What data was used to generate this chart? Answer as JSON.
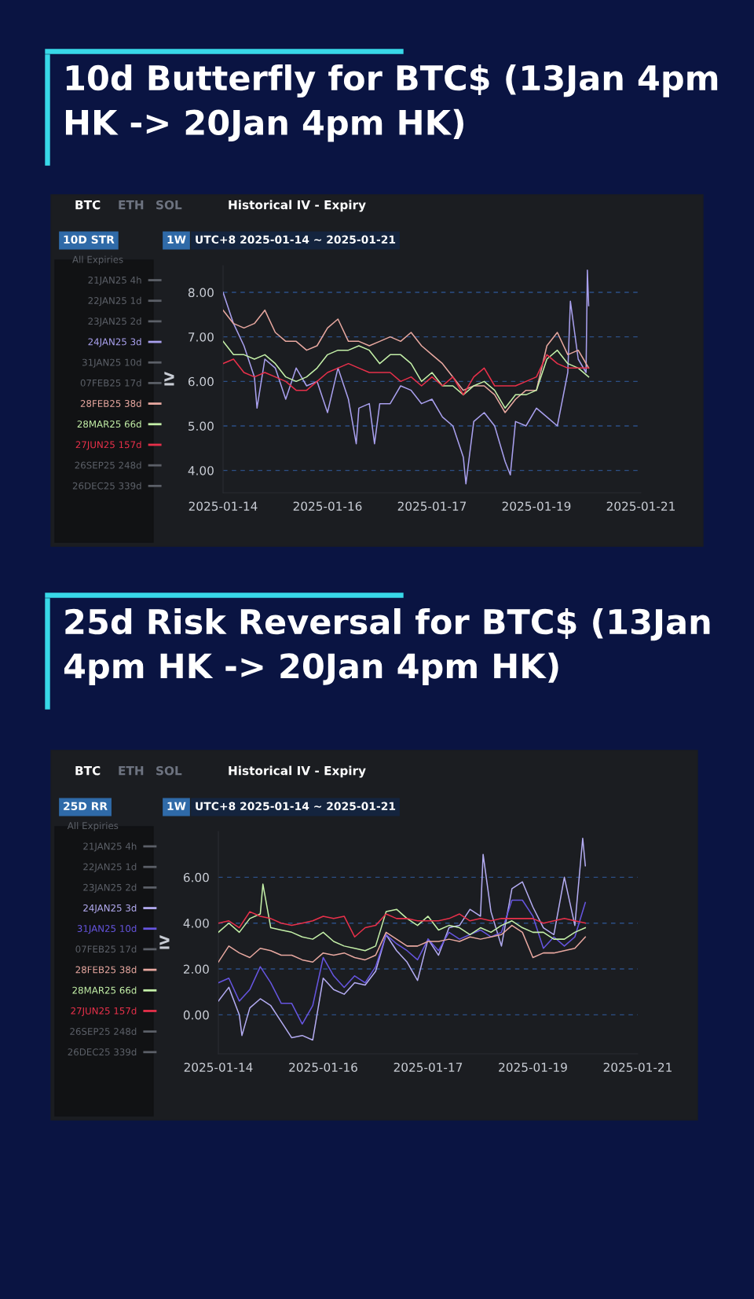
{
  "chart_data": [
    {
      "type": "line",
      "title": "10d Butterfly for BTC$ (13Jan 4pm HK -> 20Jan 4pm HK)",
      "ylabel": "IV",
      "legend_title": "All Expiries",
      "annotations": [
        "BTC",
        "ETH",
        "SOL",
        "Historical IV - Expiry",
        "10D STR",
        "1W",
        "UTC+8 2025-01-14 ~ 2025-01-21"
      ],
      "x": [
        "2025-01-14T00:00",
        "2025-01-14T04:00",
        "2025-01-14T08:00",
        "2025-01-14T12:00",
        "2025-01-14T16:00",
        "2025-01-14T20:00",
        "2025-01-15T00:00",
        "2025-01-15T04:00",
        "2025-01-15T08:00",
        "2025-01-15T12:00",
        "2025-01-15T16:00",
        "2025-01-15T20:00",
        "2025-01-16T00:00",
        "2025-01-16T04:00",
        "2025-01-16T08:00",
        "2025-01-16T12:00",
        "2025-01-16T16:00",
        "2025-01-16T20:00",
        "2025-01-17T00:00",
        "2025-01-17T04:00",
        "2025-01-17T08:00",
        "2025-01-17T12:00",
        "2025-01-17T16:00",
        "2025-01-17T20:00",
        "2025-01-18T00:00",
        "2025-01-18T04:00",
        "2025-01-18T08:00",
        "2025-01-18T12:00",
        "2025-01-18T16:00",
        "2025-01-18T20:00",
        "2025-01-19T00:00",
        "2025-01-19T04:00",
        "2025-01-19T08:00",
        "2025-01-19T12:00",
        "2025-01-19T16:00",
        "2025-01-19T20:00"
      ],
      "xlim": [
        "2025-01-14T00:00",
        "2025-01-20T16:00"
      ],
      "xticks": [
        {
          "value": "2025-01-14T00:00",
          "label": "2025-01-14"
        },
        {
          "value": "2025-01-15T16:00",
          "label": "2025-01-16"
        },
        {
          "value": "2025-01-17T08:00",
          "label": "2025-01-17"
        },
        {
          "value": "2025-01-19T00:00",
          "label": "2025-01-19"
        },
        {
          "value": "2025-01-20T16:00",
          "label": "2025-01-21"
        }
      ],
      "ylim": [
        3.5,
        8.6
      ],
      "yticks": [
        {
          "value": 4,
          "label": "4.00"
        },
        {
          "value": 5,
          "label": "5.00"
        },
        {
          "value": 6,
          "label": "6.00"
        },
        {
          "value": 7,
          "label": "7.00"
        },
        {
          "value": 8,
          "label": "8.00"
        }
      ],
      "grid": "y",
      "legend": "left",
      "line_style": "solid",
      "marker": "none",
      "series": [
        {
          "name": "21JAN25 4h",
          "color": "#5c6068",
          "values": [
            null,
            null,
            null,
            null,
            null,
            null,
            null,
            null,
            null,
            null,
            null,
            null,
            null,
            null,
            null,
            null,
            null,
            null,
            null,
            null,
            null,
            null,
            null,
            null,
            null,
            null,
            null,
            null,
            null,
            null,
            null,
            null,
            null,
            null,
            null,
            null
          ]
        },
        {
          "name": "22JAN25 1d",
          "color": "#5c6068",
          "values": [
            null,
            null,
            null,
            null,
            null,
            null,
            null,
            null,
            null,
            null,
            null,
            null,
            null,
            null,
            null,
            null,
            null,
            null,
            null,
            null,
            null,
            null,
            null,
            null,
            null,
            null,
            null,
            null,
            null,
            null,
            null,
            null,
            null,
            null,
            null,
            null
          ]
        },
        {
          "name": "23JAN25 2d",
          "color": "#5c6068",
          "values": [
            null,
            null,
            null,
            null,
            null,
            null,
            null,
            null,
            null,
            null,
            null,
            null,
            null,
            null,
            null,
            null,
            null,
            null,
            null,
            null,
            null,
            null,
            null,
            null,
            null,
            null,
            null,
            null,
            null,
            null,
            null,
            null,
            null,
            null,
            null,
            null
          ]
        },
        {
          "name": "24JAN25 3d",
          "color": "#a9a0ee",
          "x": [
            "2025-01-14T00:00",
            "2025-01-14T04:00",
            "2025-01-14T08:00",
            "2025-01-14T12:00",
            "2025-01-14T13:00",
            "2025-01-14T16:00",
            "2025-01-14T20:00",
            "2025-01-15T00:00",
            "2025-01-15T04:00",
            "2025-01-15T08:00",
            "2025-01-15T12:00",
            "2025-01-15T16:00",
            "2025-01-15T20:00",
            "2025-01-16T00:00",
            "2025-01-16T03:00",
            "2025-01-16T04:00",
            "2025-01-16T08:00",
            "2025-01-16T10:00",
            "2025-01-16T12:00",
            "2025-01-16T16:00",
            "2025-01-16T20:00",
            "2025-01-17T00:00",
            "2025-01-17T04:00",
            "2025-01-17T08:00",
            "2025-01-17T12:00",
            "2025-01-17T16:00",
            "2025-01-17T20:00",
            "2025-01-17T21:00",
            "2025-01-18T00:00",
            "2025-01-18T04:00",
            "2025-01-18T08:00",
            "2025-01-18T12:00",
            "2025-01-18T14:00",
            "2025-01-18T16:00",
            "2025-01-18T20:00",
            "2025-01-19T00:00",
            "2025-01-19T04:00",
            "2025-01-19T08:00",
            "2025-01-19T12:00",
            "2025-01-19T13:00",
            "2025-01-19T16:00",
            "2025-01-19T19:00",
            "2025-01-19T19:30",
            "2025-01-19T20:00"
          ],
          "values": [
            8.0,
            7.3,
            6.8,
            6.1,
            5.4,
            6.5,
            6.3,
            5.6,
            6.3,
            5.9,
            6.0,
            5.3,
            6.3,
            5.6,
            4.6,
            5.4,
            5.5,
            4.6,
            5.5,
            5.5,
            5.9,
            5.8,
            5.5,
            5.6,
            5.2,
            5.0,
            4.3,
            3.7,
            5.1,
            5.3,
            5.0,
            4.2,
            3.9,
            5.1,
            5.0,
            5.4,
            5.2,
            5.0,
            6.2,
            7.8,
            6.5,
            6.2,
            8.5,
            7.7
          ]
        },
        {
          "name": "31JAN25 10d",
          "color": "#5c6068",
          "values": [
            null,
            null,
            null,
            null,
            null,
            null,
            null,
            null,
            null,
            null,
            null,
            null,
            null,
            null,
            null,
            null,
            null,
            null,
            null,
            null,
            null,
            null,
            null,
            null,
            null,
            null,
            null,
            null,
            null,
            null,
            null,
            null,
            null,
            null,
            null,
            null
          ]
        },
        {
          "name": "07FEB25 17d",
          "color": "#5c6068",
          "values": [
            null,
            null,
            null,
            null,
            null,
            null,
            null,
            null,
            null,
            null,
            null,
            null,
            null,
            null,
            null,
            null,
            null,
            null,
            null,
            null,
            null,
            null,
            null,
            null,
            null,
            null,
            null,
            null,
            null,
            null,
            null,
            null,
            null,
            null,
            null,
            null
          ]
        },
        {
          "name": "28FEB25 38d",
          "color": "#e8a8a0",
          "values": [
            7.6,
            7.3,
            7.2,
            7.3,
            7.6,
            7.1,
            6.9,
            6.9,
            6.7,
            6.8,
            7.2,
            7.4,
            6.9,
            6.9,
            6.8,
            6.9,
            7.0,
            6.9,
            7.1,
            6.8,
            6.6,
            6.4,
            6.1,
            5.8,
            5.9,
            5.9,
            5.7,
            5.3,
            5.6,
            5.8,
            5.8,
            6.8,
            7.1,
            6.6,
            6.7,
            6.3
          ]
        },
        {
          "name": "28MAR25 66d",
          "color": "#c4f0a8",
          "values": [
            6.9,
            6.6,
            6.6,
            6.5,
            6.6,
            6.4,
            6.1,
            6.0,
            6.1,
            6.3,
            6.6,
            6.7,
            6.7,
            6.8,
            6.7,
            6.4,
            6.6,
            6.6,
            6.4,
            6.0,
            6.2,
            5.9,
            5.9,
            5.7,
            5.9,
            6.0,
            5.8,
            5.4,
            5.7,
            5.7,
            5.8,
            6.5,
            6.7,
            6.4,
            6.3,
            6.1
          ]
        },
        {
          "name": "27JUN25 157d",
          "color": "#e8304a",
          "values": [
            6.4,
            6.5,
            6.2,
            6.1,
            6.2,
            6.1,
            6.0,
            5.8,
            5.8,
            6.0,
            6.2,
            6.3,
            6.4,
            6.3,
            6.2,
            6.2,
            6.2,
            6.0,
            6.1,
            5.9,
            6.1,
            5.9,
            6.1,
            5.7,
            6.1,
            6.3,
            5.9,
            5.9,
            5.9,
            6.0,
            6.1,
            6.6,
            6.4,
            6.3,
            6.3,
            6.3
          ]
        },
        {
          "name": "26SEP25 248d",
          "color": "#5c6068",
          "values": [
            null,
            null,
            null,
            null,
            null,
            null,
            null,
            null,
            null,
            null,
            null,
            null,
            null,
            null,
            null,
            null,
            null,
            null,
            null,
            null,
            null,
            null,
            null,
            null,
            null,
            null,
            null,
            null,
            null,
            null,
            null,
            null,
            null,
            null,
            null,
            null
          ]
        },
        {
          "name": "26DEC25 339d",
          "color": "#5c6068",
          "values": [
            null,
            null,
            null,
            null,
            null,
            null,
            null,
            null,
            null,
            null,
            null,
            null,
            null,
            null,
            null,
            null,
            null,
            null,
            null,
            null,
            null,
            null,
            null,
            null,
            null,
            null,
            null,
            null,
            null,
            null,
            null,
            null,
            null,
            null,
            null,
            null
          ]
        }
      ]
    },
    {
      "type": "line",
      "title": "25d Risk Reversal for BTC$ (13Jan 4pm HK -> 20Jan 4pm HK)",
      "ylabel": "IV",
      "legend_title": "All Expiries",
      "annotations": [
        "BTC",
        "ETH",
        "SOL",
        "Historical IV - Expiry",
        "25D RR",
        "1W",
        "UTC+8 2025-01-14 ~ 2025-01-21"
      ],
      "x": [
        "2025-01-14T00:00",
        "2025-01-14T04:00",
        "2025-01-14T08:00",
        "2025-01-14T12:00",
        "2025-01-14T16:00",
        "2025-01-14T20:00",
        "2025-01-15T00:00",
        "2025-01-15T04:00",
        "2025-01-15T08:00",
        "2025-01-15T12:00",
        "2025-01-15T16:00",
        "2025-01-15T20:00",
        "2025-01-16T00:00",
        "2025-01-16T04:00",
        "2025-01-16T08:00",
        "2025-01-16T12:00",
        "2025-01-16T16:00",
        "2025-01-16T20:00",
        "2025-01-17T00:00",
        "2025-01-17T04:00",
        "2025-01-17T08:00",
        "2025-01-17T12:00",
        "2025-01-17T16:00",
        "2025-01-17T20:00",
        "2025-01-18T00:00",
        "2025-01-18T04:00",
        "2025-01-18T08:00",
        "2025-01-18T12:00",
        "2025-01-18T16:00",
        "2025-01-18T20:00",
        "2025-01-19T00:00",
        "2025-01-19T04:00",
        "2025-01-19T08:00",
        "2025-01-19T12:00",
        "2025-01-19T16:00",
        "2025-01-19T20:00"
      ],
      "xlim": [
        "2025-01-14T00:00",
        "2025-01-20T16:00"
      ],
      "xticks": [
        {
          "value": "2025-01-14T00:00",
          "label": "2025-01-14"
        },
        {
          "value": "2025-01-15T16:00",
          "label": "2025-01-16"
        },
        {
          "value": "2025-01-17T08:00",
          "label": "2025-01-17"
        },
        {
          "value": "2025-01-19T00:00",
          "label": "2025-01-19"
        },
        {
          "value": "2025-01-20T16:00",
          "label": "2025-01-21"
        }
      ],
      "ylim": [
        -1.7,
        8
      ],
      "yticks": [
        {
          "value": 0,
          "label": "0.00"
        },
        {
          "value": 2,
          "label": "2.00"
        },
        {
          "value": 4,
          "label": "4.00"
        },
        {
          "value": 6,
          "label": "6.00"
        }
      ],
      "grid": "y",
      "legend": "left",
      "line_style": "solid",
      "marker": "none",
      "series": [
        {
          "name": "21JAN25 4h",
          "color": "#5c6068",
          "values": [
            null,
            null,
            null,
            null,
            null,
            null,
            null,
            null,
            null,
            null,
            null,
            null,
            null,
            null,
            null,
            null,
            null,
            null,
            null,
            null,
            null,
            null,
            null,
            null,
            null,
            null,
            null,
            null,
            null,
            null,
            null,
            null,
            null,
            null,
            null,
            null
          ]
        },
        {
          "name": "22JAN25 1d",
          "color": "#5c6068",
          "values": [
            null,
            null,
            null,
            null,
            null,
            null,
            null,
            null,
            null,
            null,
            null,
            null,
            null,
            null,
            null,
            null,
            null,
            null,
            null,
            null,
            null,
            null,
            null,
            null,
            null,
            null,
            null,
            null,
            null,
            null,
            null,
            null,
            null,
            null,
            null,
            null
          ]
        },
        {
          "name": "23JAN25 2d",
          "color": "#5c6068",
          "values": [
            null,
            null,
            null,
            null,
            null,
            null,
            null,
            null,
            null,
            null,
            null,
            null,
            null,
            null,
            null,
            null,
            null,
            null,
            null,
            null,
            null,
            null,
            null,
            null,
            null,
            null,
            null,
            null,
            null,
            null,
            null,
            null,
            null,
            null,
            null,
            null
          ]
        },
        {
          "name": "24JAN25 3d",
          "color": "#b4acf2",
          "x": [
            "2025-01-14T00:00",
            "2025-01-14T04:00",
            "2025-01-14T08:00",
            "2025-01-14T09:00",
            "2025-01-14T12:00",
            "2025-01-14T16:00",
            "2025-01-14T20:00",
            "2025-01-15T00:00",
            "2025-01-15T04:00",
            "2025-01-15T08:00",
            "2025-01-15T12:00",
            "2025-01-15T16:00",
            "2025-01-15T20:00",
            "2025-01-16T00:00",
            "2025-01-16T04:00",
            "2025-01-16T08:00",
            "2025-01-16T12:00",
            "2025-01-16T16:00",
            "2025-01-16T20:00",
            "2025-01-17T00:00",
            "2025-01-17T04:00",
            "2025-01-17T08:00",
            "2025-01-17T12:00",
            "2025-01-17T16:00",
            "2025-01-17T20:00",
            "2025-01-18T00:00",
            "2025-01-18T04:00",
            "2025-01-18T05:00",
            "2025-01-18T08:00",
            "2025-01-18T12:00",
            "2025-01-18T16:00",
            "2025-01-18T20:00",
            "2025-01-19T00:00",
            "2025-01-19T04:00",
            "2025-01-19T08:00",
            "2025-01-19T12:00",
            "2025-01-19T16:00",
            "2025-01-19T19:00",
            "2025-01-19T20:00"
          ],
          "values": [
            0.6,
            1.2,
            0.0,
            -0.9,
            0.3,
            0.7,
            0.4,
            -0.3,
            -1.0,
            -0.9,
            -1.1,
            1.6,
            1.1,
            0.9,
            1.4,
            1.3,
            1.9,
            3.5,
            2.8,
            2.3,
            1.5,
            3.3,
            2.6,
            3.8,
            3.9,
            4.6,
            4.3,
            7.0,
            4.5,
            3.0,
            5.5,
            5.8,
            4.7,
            3.8,
            3.5,
            6.0,
            3.9,
            7.7,
            6.5
          ]
        },
        {
          "name": "31JAN25 10d",
          "color": "#6655e0",
          "values": [
            1.4,
            1.6,
            0.6,
            1.1,
            2.1,
            1.4,
            0.5,
            0.5,
            -0.4,
            0.4,
            2.5,
            1.7,
            1.2,
            1.7,
            1.4,
            2.1,
            3.5,
            3.1,
            2.8,
            2.4,
            3.3,
            2.8,
            3.6,
            3.3,
            3.5,
            3.7,
            3.4,
            3.6,
            5.0,
            5.0,
            4.3,
            2.9,
            3.4,
            3.0,
            3.4,
            4.9
          ]
        },
        {
          "name": "07FEB25 17d",
          "color": "#5c6068",
          "values": [
            null,
            null,
            null,
            null,
            null,
            null,
            null,
            null,
            null,
            null,
            null,
            null,
            null,
            null,
            null,
            null,
            null,
            null,
            null,
            null,
            null,
            null,
            null,
            null,
            null,
            null,
            null,
            null,
            null,
            null,
            null,
            null,
            null,
            null,
            null,
            null
          ]
        },
        {
          "name": "28FEB25 38d",
          "color": "#e8a8a0",
          "values": [
            2.3,
            3.0,
            2.7,
            2.5,
            2.9,
            2.8,
            2.6,
            2.6,
            2.4,
            2.3,
            2.7,
            2.6,
            2.7,
            2.5,
            2.4,
            2.6,
            3.6,
            3.3,
            3.0,
            3.0,
            3.2,
            3.2,
            3.3,
            3.2,
            3.4,
            3.3,
            3.4,
            3.5,
            3.9,
            3.6,
            2.5,
            2.7,
            2.7,
            2.8,
            2.9,
            3.4
          ]
        },
        {
          "name": "28MAR25 66d",
          "color": "#c4f0a8",
          "x": [
            "2025-01-14T00:00",
            "2025-01-14T04:00",
            "2025-01-14T08:00",
            "2025-01-14T12:00",
            "2025-01-14T16:00",
            "2025-01-14T17:00",
            "2025-01-14T20:00",
            "2025-01-15T00:00",
            "2025-01-15T04:00",
            "2025-01-15T08:00",
            "2025-01-15T12:00",
            "2025-01-15T16:00",
            "2025-01-15T20:00",
            "2025-01-16T00:00",
            "2025-01-16T04:00",
            "2025-01-16T08:00",
            "2025-01-16T12:00",
            "2025-01-16T16:00",
            "2025-01-16T20:00",
            "2025-01-17T00:00",
            "2025-01-17T04:00",
            "2025-01-17T08:00",
            "2025-01-17T12:00",
            "2025-01-17T16:00",
            "2025-01-17T20:00",
            "2025-01-18T00:00",
            "2025-01-18T04:00",
            "2025-01-18T08:00",
            "2025-01-18T12:00",
            "2025-01-18T16:00",
            "2025-01-18T20:00",
            "2025-01-19T00:00",
            "2025-01-19T04:00",
            "2025-01-19T08:00",
            "2025-01-19T12:00",
            "2025-01-19T16:00",
            "2025-01-19T20:00"
          ],
          "values": [
            3.6,
            4.0,
            3.6,
            4.2,
            4.4,
            5.7,
            3.8,
            3.7,
            3.6,
            3.4,
            3.3,
            3.6,
            3.2,
            3.0,
            2.9,
            2.8,
            3.0,
            4.5,
            4.6,
            4.2,
            3.9,
            4.3,
            3.7,
            3.9,
            3.8,
            3.5,
            3.8,
            3.6,
            3.9,
            4.1,
            3.8,
            3.6,
            3.6,
            3.3,
            3.3,
            3.6,
            3.8
          ]
        },
        {
          "name": "27JUN25 157d",
          "color": "#e8304a",
          "values": [
            4.0,
            4.1,
            3.8,
            4.5,
            4.3,
            4.2,
            4.0,
            3.9,
            4.0,
            4.1,
            4.3,
            4.2,
            4.3,
            3.4,
            3.8,
            3.9,
            4.4,
            4.2,
            4.2,
            4.1,
            4.1,
            4.1,
            4.2,
            4.4,
            4.1,
            4.2,
            4.1,
            4.2,
            4.2,
            4.2,
            4.2,
            4.0,
            4.1,
            4.2,
            4.1,
            4.0
          ]
        },
        {
          "name": "26SEP25 248d",
          "color": "#5c6068",
          "values": [
            null,
            null,
            null,
            null,
            null,
            null,
            null,
            null,
            null,
            null,
            null,
            null,
            null,
            null,
            null,
            null,
            null,
            null,
            null,
            null,
            null,
            null,
            null,
            null,
            null,
            null,
            null,
            null,
            null,
            null,
            null,
            null,
            null,
            null,
            null,
            null
          ]
        },
        {
          "name": "26DEC25 339d",
          "color": "#5c6068",
          "values": [
            null,
            null,
            null,
            null,
            null,
            null,
            null,
            null,
            null,
            null,
            null,
            null,
            null,
            null,
            null,
            null,
            null,
            null,
            null,
            null,
            null,
            null,
            null,
            null,
            null,
            null,
            null,
            null,
            null,
            null,
            null,
            null,
            null,
            null,
            null,
            null
          ]
        }
      ]
    }
  ]
}
